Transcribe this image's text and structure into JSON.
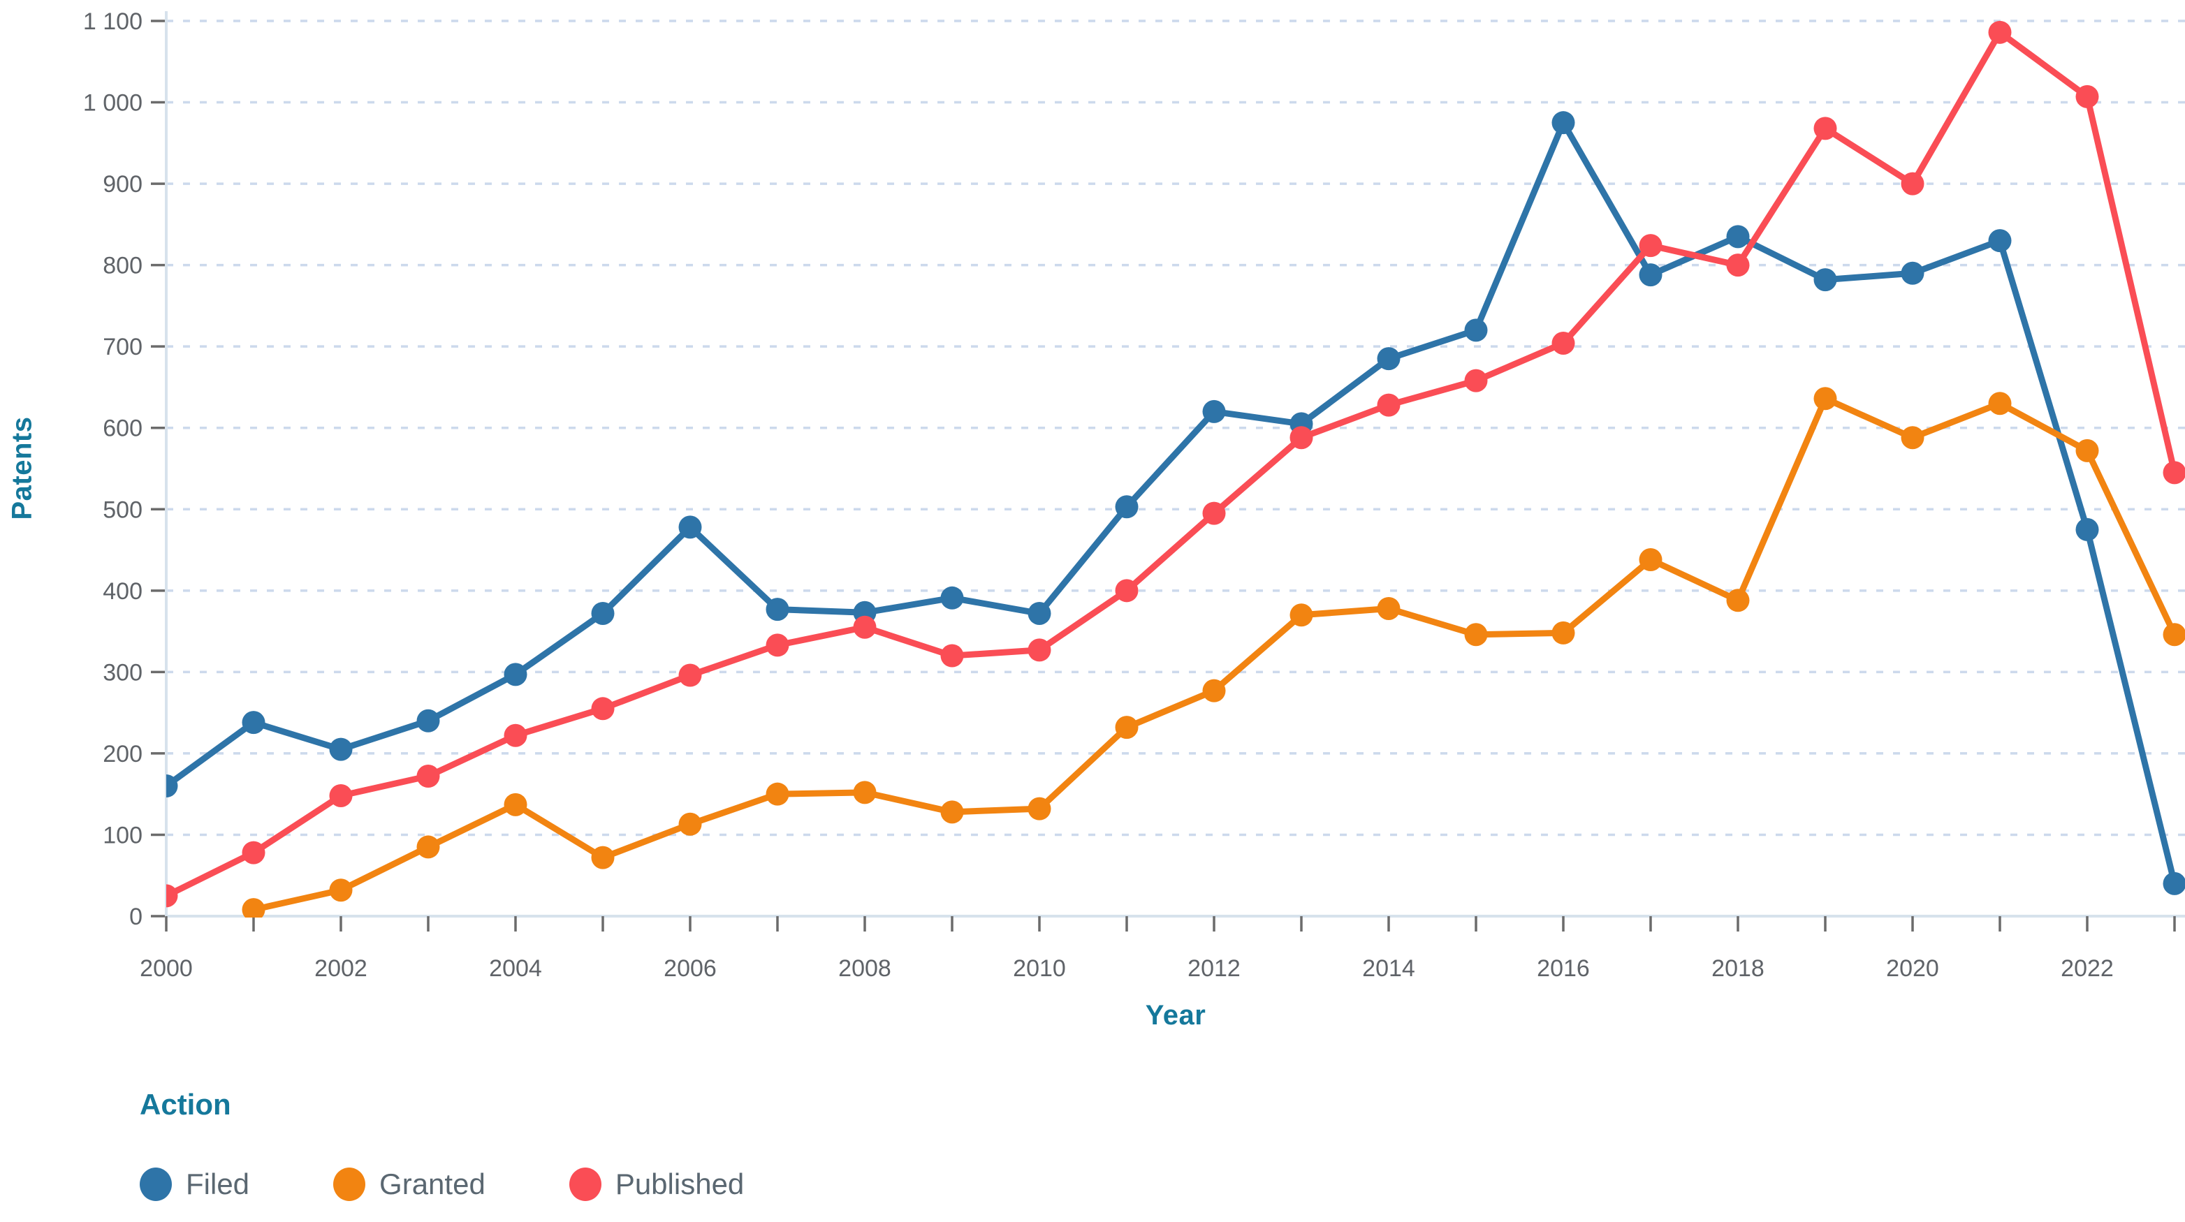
{
  "chart_data": {
    "type": "line",
    "title": "",
    "xlabel": "Year",
    "ylabel": "Patents",
    "x": [
      2000,
      2001,
      2002,
      2003,
      2004,
      2005,
      2006,
      2007,
      2008,
      2009,
      2010,
      2011,
      2012,
      2013,
      2014,
      2015,
      2016,
      2017,
      2018,
      2019,
      2020,
      2021,
      2022,
      2023
    ],
    "x_labeled_ticks": [
      2000,
      2002,
      2004,
      2006,
      2008,
      2010,
      2012,
      2014,
      2016,
      2018,
      2020,
      2022
    ],
    "x_tick_labels": [
      "2000",
      "2002",
      "2004",
      "2006",
      "2008",
      "2010",
      "2012",
      "2014",
      "2016",
      "2018",
      "2020",
      "2022"
    ],
    "xlim": [
      2000,
      2023
    ],
    "y_ticks": [
      0,
      100,
      200,
      300,
      400,
      500,
      600,
      700,
      800,
      900,
      1000,
      1100
    ],
    "y_tick_labels": [
      "0",
      "100",
      "200",
      "300",
      "400",
      "500",
      "600",
      "700",
      "800",
      "900",
      "1 000",
      "1 100"
    ],
    "ylim": [
      0,
      1100
    ],
    "grid": "horizontal-dashed",
    "legend_position": "bottom-left",
    "legend_title": "Action",
    "series": [
      {
        "name": "Filed",
        "color": "#2e74a8",
        "values": [
          160,
          238,
          205,
          240,
          297,
          372,
          478,
          377,
          373,
          391,
          372,
          503,
          620,
          605,
          685,
          720,
          975,
          788,
          835,
          782,
          790,
          830,
          475,
          40
        ]
      },
      {
        "name": "Granted",
        "color": "#f28411",
        "values": [
          null,
          8,
          32,
          85,
          137,
          72,
          113,
          150,
          152,
          128,
          132,
          232,
          277,
          370,
          378,
          346,
          348,
          438,
          388,
          636,
          588,
          630,
          572,
          346
        ]
      },
      {
        "name": "Published",
        "color": "#fa4d55",
        "values": [
          25,
          78,
          148,
          172,
          222,
          255,
          296,
          333,
          355,
          320,
          327,
          400,
          495,
          588,
          628,
          658,
          704,
          824,
          800,
          968,
          900,
          1086,
          1007,
          545
        ]
      }
    ]
  },
  "colors": {
    "axis_title": "#15789b",
    "tick_label": "#5f6368",
    "legend_text": "#5a6771",
    "gridline": "#ccd9ec",
    "axis_line": "#d7e2ec",
    "tick_mark": "#6b6b6b",
    "background": "#ffffff"
  }
}
